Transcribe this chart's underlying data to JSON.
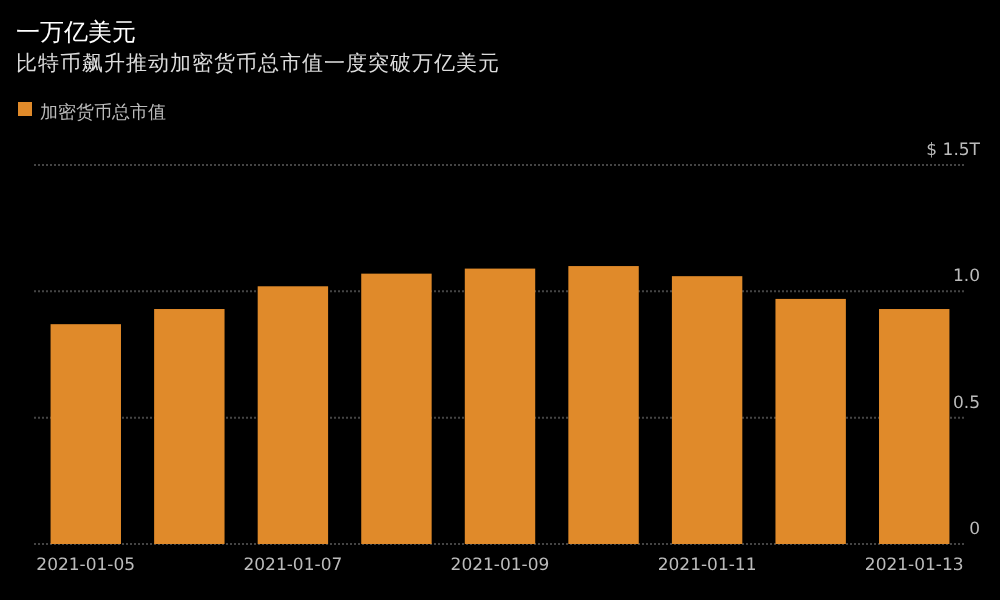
{
  "chart_data": {
    "type": "bar",
    "title": "一万亿美元",
    "subtitle": "比特币飙升推动加密货币总市值一度突破万亿美元",
    "categories": [
      "2021-01-05",
      null,
      "2021-01-07",
      null,
      "2021-01-09",
      null,
      "2021-01-11",
      null,
      "2021-01-13"
    ],
    "series": [
      {
        "name": "加密货币总市值",
        "color": "#e08a2a",
        "values": [
          0.87,
          0.93,
          1.02,
          1.07,
          1.09,
          1.1,
          1.06,
          0.97,
          0.93
        ]
      }
    ],
    "ylim": [
      0,
      1.5
    ],
    "yticks": [
      0,
      0.5,
      {
        "value": 1,
        "label": "1.0"
      },
      {
        "value": 1.5,
        "label": "$ 1.5T"
      }
    ],
    "grid": "y",
    "legend": "top left"
  }
}
